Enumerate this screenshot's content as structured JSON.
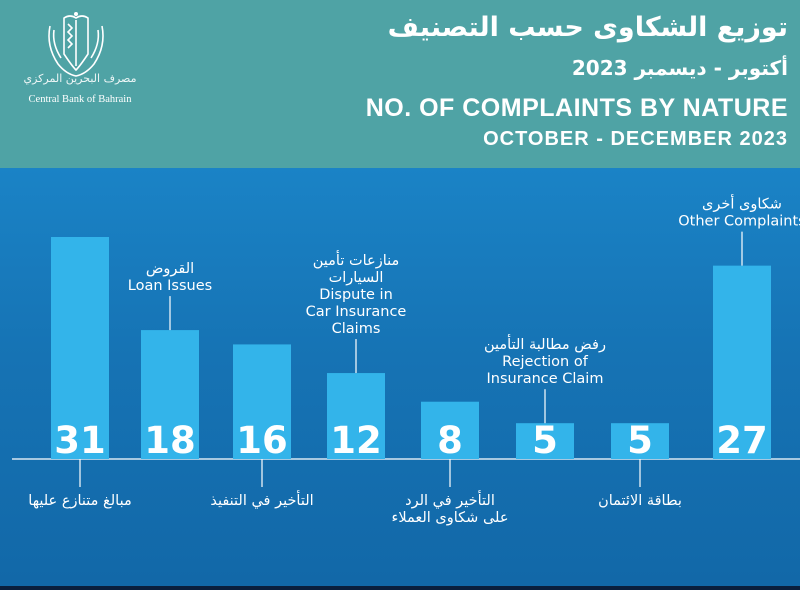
{
  "header": {
    "title_ar": "توزيع الشكاوى حسب التصنيف",
    "subtitle_ar": "أكتوبر - ديسمبر 2023",
    "title_en": "NO. OF COMPLAINTS BY NATURE",
    "subtitle_en": "OCTOBER - DECEMBER 2023"
  },
  "logo": {
    "icon": "cbb-crest-icon",
    "name_ar": "مصرف البحرين المركزي",
    "name_en": "Central Bank of Bahrain"
  },
  "colors": {
    "header_bg": "#4fa3a5",
    "panel_top": "#1a83c6",
    "panel_bottom": "#1268a8",
    "bar": "#33b4ea",
    "text": "#ffffff"
  },
  "chart_data": {
    "type": "bar",
    "title": "NO. OF COMPLAINTS BY NATURE",
    "subtitle": "OCTOBER - DECEMBER 2023",
    "categories": [
      "مبالغ متنازع عليها",
      "القروض Loan Issues",
      "التأخير في التنفيذ",
      "منازعات تأمين السيارات Dispute in Car Insurance Claims",
      "التأخير في الرد على شكاوى العملاء",
      "رفض مطالبة التأمين Rejection of Insurance Claim",
      "بطاقة الائتمان",
      "شكاوى أخرى Other Complaints"
    ],
    "values": [
      31,
      18,
      16,
      12,
      8,
      5,
      5,
      27
    ],
    "ylim": [
      0,
      35
    ],
    "grid": false,
    "legend": "none",
    "labels": [
      {
        "lines": [
          "مبالغ متنازع عليها"
        ],
        "side": "below"
      },
      {
        "lines": [
          "القروض",
          "Loan Issues"
        ],
        "side": "above"
      },
      {
        "lines": [
          "التأخير في التنفيذ"
        ],
        "side": "below"
      },
      {
        "lines": [
          "منازعات تأمين",
          "السيارات",
          "Dispute in",
          "Car Insurance",
          "Claims"
        ],
        "side": "above"
      },
      {
        "lines": [
          "التأخير في الرد",
          "على شكاوى العملاء"
        ],
        "side": "below"
      },
      {
        "lines": [
          "رفض مطالبة التأمين",
          "Rejection of",
          "Insurance Claim"
        ],
        "side": "above"
      },
      {
        "lines": [
          "بطاقة الائتمان"
        ],
        "side": "below"
      },
      {
        "lines": [
          "شكاوى أخرى",
          "Other Complaints"
        ],
        "side": "above"
      }
    ]
  }
}
